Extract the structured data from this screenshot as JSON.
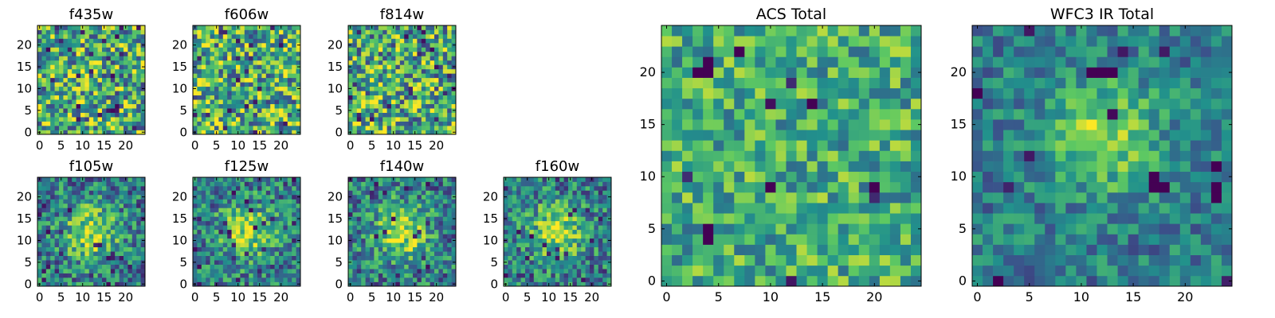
{
  "figure": {
    "colormap": "viridis",
    "colormap_stops": [
      "#440154",
      "#3b528b",
      "#21918c",
      "#5ec962",
      "#fde725"
    ]
  },
  "chart_data": [
    {
      "type": "heatmap",
      "title": "f435w",
      "xlim": [
        -0.5,
        24.5
      ],
      "ylim": [
        -0.5,
        24.5
      ],
      "xticks": [
        0,
        5,
        10,
        15,
        20
      ],
      "yticks": [
        0,
        5,
        10,
        15,
        20
      ],
      "size": [
        25,
        25
      ],
      "pattern": "uniform noise"
    },
    {
      "type": "heatmap",
      "title": "f606w",
      "xlim": [
        -0.5,
        24.5
      ],
      "ylim": [
        -0.5,
        24.5
      ],
      "xticks": [
        0,
        5,
        10,
        15,
        20
      ],
      "yticks": [
        0,
        5,
        10,
        15,
        20
      ],
      "size": [
        25,
        25
      ],
      "pattern": "uniform noise"
    },
    {
      "type": "heatmap",
      "title": "f814w",
      "xlim": [
        -0.5,
        24.5
      ],
      "ylim": [
        -0.5,
        24.5
      ],
      "xticks": [
        0,
        5,
        10,
        15,
        20
      ],
      "yticks": [
        0,
        5,
        10,
        15,
        20
      ],
      "size": [
        25,
        25
      ],
      "pattern": "uniform noise"
    },
    {
      "type": "heatmap",
      "title": "f105w",
      "xlim": [
        -0.5,
        24.5
      ],
      "ylim": [
        -0.5,
        24.5
      ],
      "xticks": [
        0,
        5,
        10,
        15,
        20
      ],
      "yticks": [
        0,
        5,
        10,
        15,
        20
      ],
      "size": [
        25,
        25
      ],
      "pattern": "central source",
      "peak": [
        12,
        12
      ]
    },
    {
      "type": "heatmap",
      "title": "f125w",
      "xlim": [
        -0.5,
        24.5
      ],
      "ylim": [
        -0.5,
        24.5
      ],
      "xticks": [
        0,
        5,
        10,
        15,
        20
      ],
      "yticks": [
        0,
        5,
        10,
        15,
        20
      ],
      "size": [
        25,
        25
      ],
      "pattern": "central source",
      "peak": [
        12,
        12
      ]
    },
    {
      "type": "heatmap",
      "title": "f140w",
      "xlim": [
        -0.5,
        24.5
      ],
      "ylim": [
        -0.5,
        24.5
      ],
      "xticks": [
        0,
        5,
        10,
        15,
        20
      ],
      "yticks": [
        0,
        5,
        10,
        15,
        20
      ],
      "size": [
        25,
        25
      ],
      "pattern": "central source",
      "peak": [
        12,
        12
      ]
    },
    {
      "type": "heatmap",
      "title": "f160w",
      "xlim": [
        -0.5,
        24.5
      ],
      "ylim": [
        -0.5,
        24.5
      ],
      "xticks": [
        0,
        5,
        10,
        15,
        20
      ],
      "yticks": [
        0,
        5,
        10,
        15,
        20
      ],
      "size": [
        25,
        25
      ],
      "pattern": "central source",
      "peak": [
        12,
        12
      ]
    },
    {
      "type": "heatmap",
      "title": "ACS Total",
      "xlim": [
        -0.5,
        24.5
      ],
      "ylim": [
        -0.5,
        24.5
      ],
      "xticks": [
        0,
        5,
        10,
        15,
        20
      ],
      "yticks": [
        0,
        5,
        10,
        15,
        20
      ],
      "size": [
        25,
        25
      ],
      "pattern": "uniform noise",
      "dark_pixels": [
        [
          3,
          20
        ],
        [
          4,
          20
        ],
        [
          4,
          21
        ],
        [
          14,
          17
        ],
        [
          10,
          9
        ],
        [
          20,
          9
        ],
        [
          4,
          5
        ],
        [
          4,
          4
        ],
        [
          7,
          22
        ]
      ]
    },
    {
      "type": "heatmap",
      "title": "WFC3 IR Total",
      "xlim": [
        -0.5,
        24.5
      ],
      "ylim": [
        -0.5,
        24.5
      ],
      "xticks": [
        0,
        5,
        10,
        15,
        20
      ],
      "yticks": [
        0,
        5,
        10,
        15,
        20
      ],
      "size": [
        25,
        25
      ],
      "pattern": "central source",
      "peak": [
        12,
        14
      ],
      "dark_pixels": [
        [
          0,
          18
        ],
        [
          17,
          10
        ],
        [
          18,
          9
        ],
        [
          17,
          9
        ],
        [
          23,
          9
        ],
        [
          23,
          8
        ],
        [
          23,
          11
        ],
        [
          12,
          20
        ],
        [
          13,
          20
        ],
        [
          11,
          20
        ],
        [
          2,
          0
        ]
      ]
    }
  ]
}
